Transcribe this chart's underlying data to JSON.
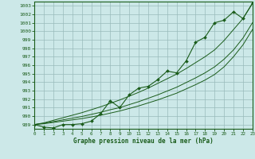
{
  "xlabel": "Graphe pression niveau de la mer (hPa)",
  "bg_color": "#cce8e8",
  "grid_color": "#99bbbb",
  "line_color": "#1a5c1a",
  "xlim": [
    0,
    23
  ],
  "ylim": [
    988.5,
    1003.5
  ],
  "yticks": [
    989,
    990,
    991,
    992,
    993,
    994,
    995,
    996,
    997,
    998,
    999,
    1000,
    1001,
    1002,
    1003
  ],
  "xticks": [
    0,
    1,
    2,
    3,
    4,
    5,
    6,
    7,
    8,
    9,
    10,
    11,
    12,
    13,
    14,
    15,
    16,
    17,
    18,
    19,
    20,
    21,
    22,
    23
  ],
  "hours": [
    0,
    1,
    2,
    3,
    4,
    5,
    6,
    7,
    8,
    9,
    10,
    11,
    12,
    13,
    14,
    15,
    16,
    17,
    18,
    19,
    20,
    21,
    22,
    23
  ],
  "pressure": [
    989.0,
    988.7,
    988.6,
    989.0,
    989.0,
    989.1,
    989.4,
    990.3,
    991.8,
    991.0,
    992.5,
    993.3,
    993.5,
    994.3,
    995.3,
    995.1,
    996.5,
    998.7,
    999.3,
    1001.0,
    1001.3,
    1002.3,
    1001.5,
    1003.3
  ],
  "trend_center": [
    989.0,
    989.15,
    989.35,
    989.55,
    989.75,
    989.95,
    990.2,
    990.45,
    990.75,
    991.0,
    991.35,
    991.7,
    992.1,
    992.5,
    992.95,
    993.4,
    993.95,
    994.5,
    995.1,
    995.8,
    996.7,
    997.8,
    999.2,
    1001.0
  ],
  "trend_upper": [
    989.0,
    989.2,
    989.5,
    989.8,
    990.1,
    990.4,
    990.75,
    991.1,
    991.5,
    991.9,
    992.35,
    992.8,
    993.3,
    993.85,
    994.4,
    994.95,
    995.6,
    996.3,
    997.0,
    997.8,
    998.9,
    1000.2,
    1001.5,
    1003.3
  ],
  "trend_lower": [
    989.0,
    989.1,
    989.25,
    989.4,
    989.55,
    989.7,
    989.9,
    990.1,
    990.35,
    990.6,
    990.9,
    991.2,
    991.55,
    991.9,
    992.3,
    992.7,
    993.2,
    993.7,
    994.25,
    994.9,
    995.8,
    997.0,
    998.4,
    1000.2
  ]
}
